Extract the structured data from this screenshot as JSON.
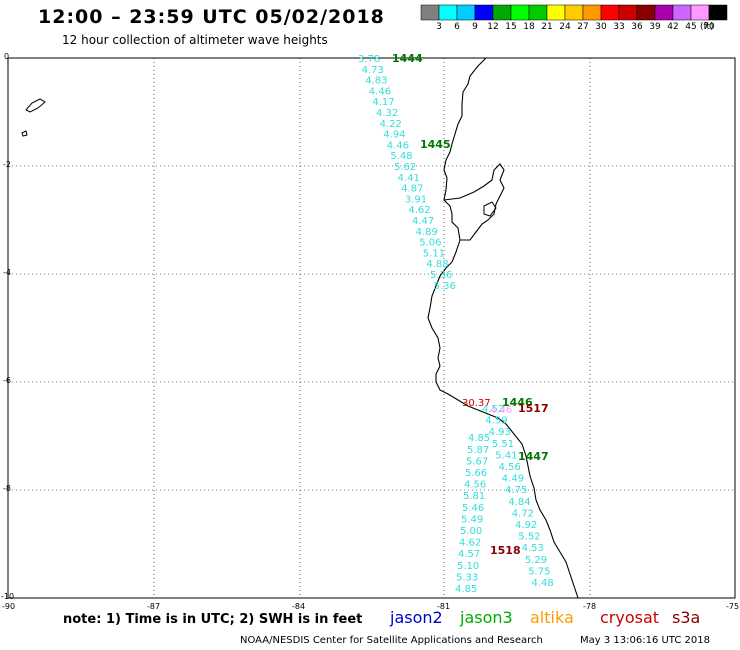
{
  "header": {
    "title": "12:00 – 23:59 UTC 05/02/2018",
    "subtitle": "12 hour collection of altimeter wave heights"
  },
  "legend": {
    "colors": [
      "#808080",
      "#00ffff",
      "#00ccff",
      "#0000ff",
      "#00aa00",
      "#00ff00",
      "#00cc00",
      "#ffff00",
      "#ffcc00",
      "#ff9900",
      "#ff0000",
      "#cc0000",
      "#880000",
      "#aa00aa",
      "#cc66ff",
      "#ff99ff",
      "#000000"
    ],
    "labels": [
      "3",
      "6",
      "9",
      "12",
      "15",
      "18",
      "21",
      "24",
      "27",
      "30",
      "33",
      "36",
      "39",
      "42",
      "45",
      "70"
    ],
    "unit": "(ft)"
  },
  "axes": {
    "lat_ticks": [
      "0",
      "-2",
      "-4",
      "-6",
      "-8",
      "-10"
    ],
    "lon_ticks": [
      "-90",
      "-87",
      "-84",
      "-81",
      "-78",
      "-75"
    ]
  },
  "times": {
    "t1444": "1444",
    "t1445": "1445",
    "t1446": "1446",
    "t1447": "1447",
    "t1517": "1517",
    "t1518": "1518"
  },
  "tracks": {
    "left": [
      "3.78",
      "4.73",
      "4.83",
      "4.46",
      "4.17",
      "4.32",
      "4.22",
      "4.94",
      "4.46",
      "5.48",
      "5.62",
      "4.41",
      "4.87",
      "3.91",
      "4.62",
      "4.47",
      "4.89",
      "5.06",
      "5.11",
      "4.88",
      "5.36",
      "5.36"
    ],
    "right_a": [
      "30.37",
      "4.52",
      "4.46",
      "4.59",
      "4.85",
      "4.93",
      "5.87",
      "5.51",
      "5.67",
      "5.41",
      "5.66",
      "4.56",
      "4.56",
      "4.49",
      "5.81",
      "4.75",
      "5.46",
      "4.84",
      "5.49",
      "4.72",
      "5.00",
      "4.92",
      "4.62",
      "5.52",
      "4.57",
      "4.53",
      "5.10",
      "5.29",
      "5.33",
      "5.75",
      "4.85",
      "4.48"
    ]
  },
  "missions": {
    "jason2": "jason2",
    "jason3": "jason3",
    "altika": "altika",
    "cryosat": "cryosat",
    "s3a": "s3a"
  },
  "note": "note: 1) Time is in UTC; 2) SWH is in feet",
  "footer": {
    "credit": "NOAA/NESDIS Center for Satellite Applications and Research",
    "timestamp": "May  3 13:06:16 UTC 2018"
  }
}
